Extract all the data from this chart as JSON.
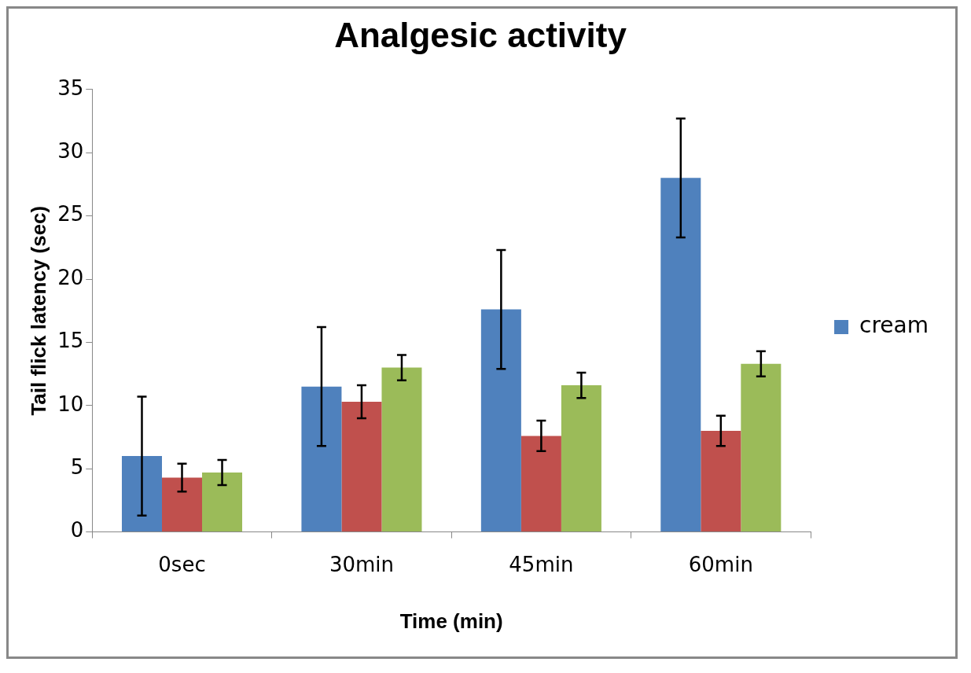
{
  "chart_data": {
    "type": "bar",
    "title": "Analgesic activity",
    "xlabel": "Time (min)",
    "ylabel": "Tail flick latency (sec)",
    "categories": [
      "0sec",
      "30min",
      "45min",
      "60min"
    ],
    "series": [
      {
        "name": "cream",
        "color": "#4f81bd",
        "values": [
          6.0,
          11.5,
          17.6,
          28.0
        ],
        "errors": [
          4.7,
          4.7,
          4.7,
          4.7
        ]
      },
      {
        "color": "#c0504d",
        "values": [
          4.3,
          10.3,
          7.6,
          8.0
        ],
        "errors": [
          1.1,
          1.3,
          1.2,
          1.2
        ]
      },
      {
        "color": "#9bbb59",
        "values": [
          4.7,
          13.0,
          11.6,
          13.3
        ],
        "errors": [
          1.0,
          1.0,
          1.0,
          1.0
        ]
      }
    ],
    "ylim": [
      0,
      35
    ],
    "yticks": [
      0,
      5,
      10,
      15,
      20,
      25,
      30,
      35
    ],
    "grid": false,
    "legend": "right"
  }
}
